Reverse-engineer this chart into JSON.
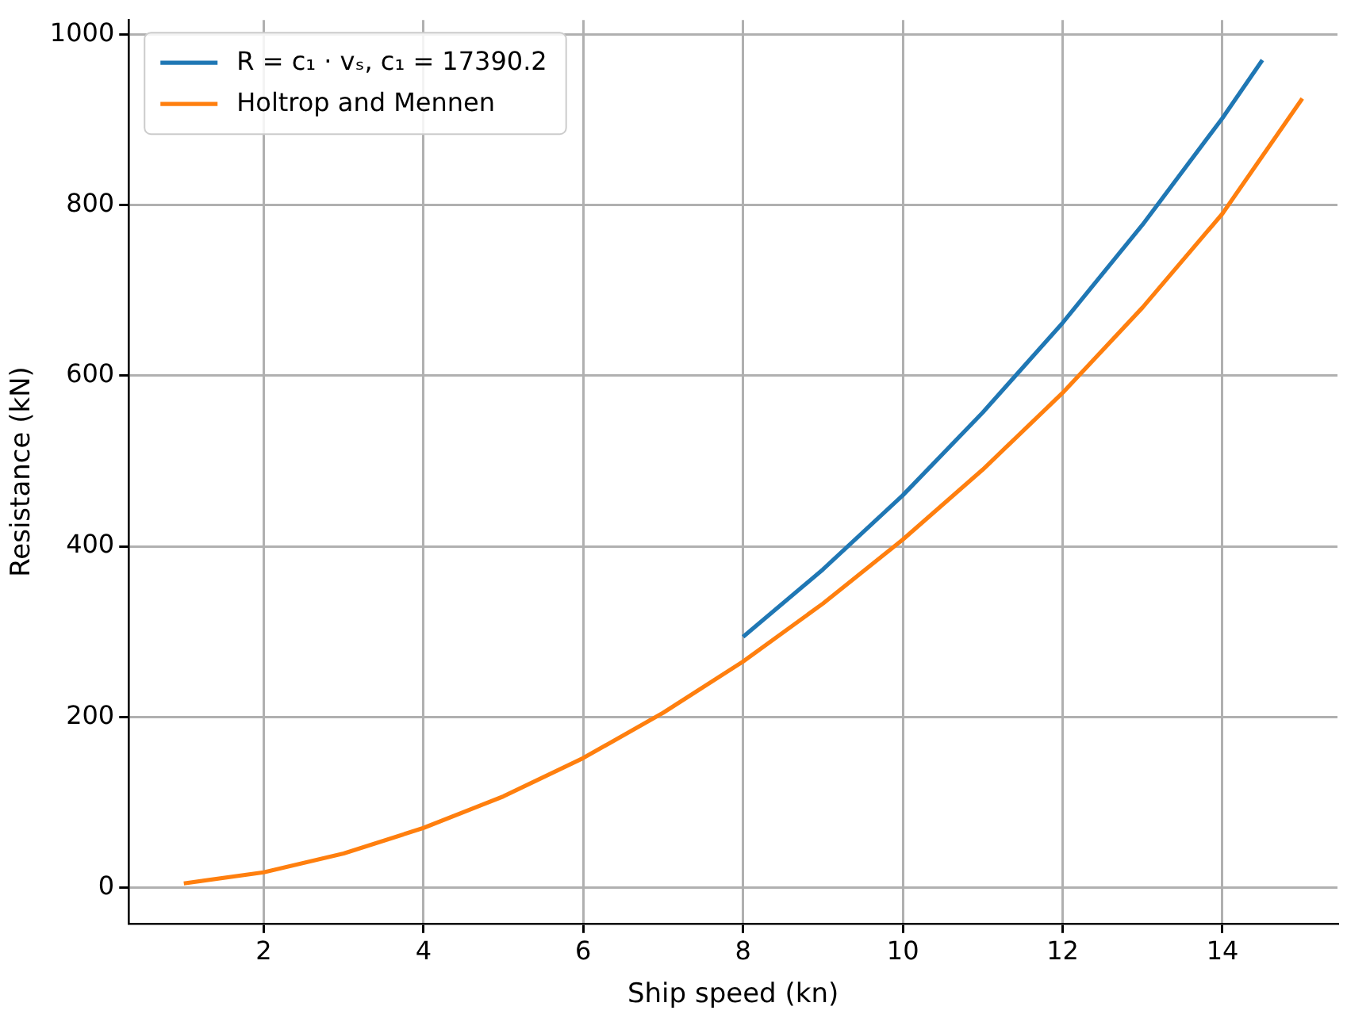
{
  "chart_data": {
    "type": "line",
    "xlabel": "Ship speed (kn)",
    "ylabel": "Resistance (kN)",
    "xlim": [
      0.31,
      15.44
    ],
    "ylim": [
      -42,
      1017
    ],
    "xticks": [
      2,
      4,
      6,
      8,
      10,
      12,
      14
    ],
    "yticks": [
      0,
      200,
      400,
      600,
      800,
      1000
    ],
    "grid": true,
    "legend": "top left",
    "marker": "none",
    "line_style": "solid",
    "series": [
      {
        "name": "R = c₁ · vₛ, c₁ = 17390.2",
        "color": "#1f77b4",
        "x": [
          8,
          9,
          10,
          11,
          12,
          13,
          14,
          14.5
        ],
        "values": [
          294,
          373,
          460,
          557,
          662,
          777,
          902,
          970
        ]
      },
      {
        "name": "Holtrop and Mennen",
        "color": "#ff7f0e",
        "x": [
          1,
          2,
          3,
          4,
          5,
          6,
          7,
          8,
          9,
          10,
          11,
          12,
          13,
          14,
          15
        ],
        "values": [
          5,
          18,
          40,
          70,
          107,
          152,
          205,
          265,
          333,
          408,
          490,
          580,
          680,
          790,
          925
        ]
      }
    ]
  }
}
